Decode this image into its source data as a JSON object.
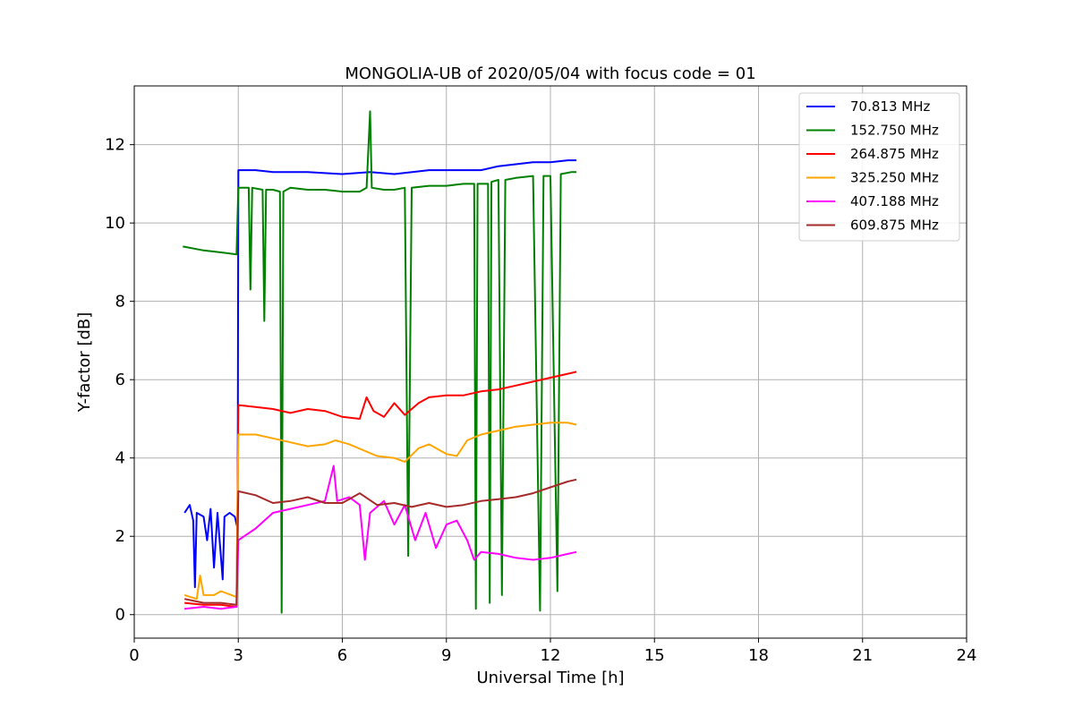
{
  "chart_data": {
    "type": "line",
    "title": "MONGOLIA-UB of 2020/05/04 with focus code = 01",
    "xlabel": "Universal Time [h]",
    "ylabel": "Y-factor [dB]",
    "xlim": [
      0,
      24
    ],
    "ylim": [
      -0.6,
      13.5
    ],
    "xticks": [
      0,
      3,
      6,
      9,
      12,
      15,
      18,
      21,
      24
    ],
    "yticks": [
      0,
      2,
      4,
      6,
      8,
      10,
      12
    ],
    "grid": true,
    "legend_position": "top-right",
    "series": [
      {
        "name": " 70.813 MHz",
        "color": "#0000ff",
        "points": [
          [
            1.45,
            2.6
          ],
          [
            1.6,
            2.8
          ],
          [
            1.7,
            2.4
          ],
          [
            1.75,
            0.7
          ],
          [
            1.8,
            2.6
          ],
          [
            2.0,
            2.5
          ],
          [
            2.1,
            1.9
          ],
          [
            2.2,
            2.7
          ],
          [
            2.3,
            1.2
          ],
          [
            2.4,
            2.6
          ],
          [
            2.55,
            0.9
          ],
          [
            2.6,
            2.5
          ],
          [
            2.75,
            2.6
          ],
          [
            2.9,
            2.5
          ],
          [
            2.98,
            2.2
          ],
          [
            3.0,
            11.35
          ],
          [
            3.5,
            11.35
          ],
          [
            4.0,
            11.3
          ],
          [
            5.0,
            11.3
          ],
          [
            6.0,
            11.25
          ],
          [
            6.8,
            11.3
          ],
          [
            7.5,
            11.25
          ],
          [
            8.5,
            11.35
          ],
          [
            9.0,
            11.35
          ],
          [
            10.0,
            11.35
          ],
          [
            10.5,
            11.45
          ],
          [
            11.0,
            11.5
          ],
          [
            11.5,
            11.55
          ],
          [
            12.0,
            11.55
          ],
          [
            12.5,
            11.6
          ],
          [
            12.75,
            11.6
          ]
        ]
      },
      {
        "name": "152.750 MHz",
        "color": "#008000",
        "points": [
          [
            1.4,
            9.4
          ],
          [
            2.0,
            9.3
          ],
          [
            2.5,
            9.25
          ],
          [
            2.95,
            9.2
          ],
          [
            3.0,
            10.9
          ],
          [
            3.3,
            10.9
          ],
          [
            3.35,
            8.3
          ],
          [
            3.4,
            10.9
          ],
          [
            3.7,
            10.85
          ],
          [
            3.75,
            7.5
          ],
          [
            3.8,
            10.85
          ],
          [
            4.0,
            10.85
          ],
          [
            4.2,
            10.8
          ],
          [
            4.25,
            0.05
          ],
          [
            4.3,
            10.8
          ],
          [
            4.5,
            10.9
          ],
          [
            5.0,
            10.85
          ],
          [
            5.5,
            10.85
          ],
          [
            6.0,
            10.8
          ],
          [
            6.5,
            10.8
          ],
          [
            6.7,
            10.9
          ],
          [
            6.8,
            12.85
          ],
          [
            6.85,
            10.9
          ],
          [
            7.2,
            10.85
          ],
          [
            7.5,
            10.85
          ],
          [
            7.8,
            10.9
          ],
          [
            7.9,
            1.5
          ],
          [
            8.0,
            10.9
          ],
          [
            8.5,
            10.95
          ],
          [
            9.0,
            10.95
          ],
          [
            9.5,
            11.0
          ],
          [
            9.8,
            11.0
          ],
          [
            9.85,
            0.15
          ],
          [
            9.9,
            11.0
          ],
          [
            10.2,
            11.0
          ],
          [
            10.25,
            0.3
          ],
          [
            10.3,
            11.05
          ],
          [
            10.5,
            11.1
          ],
          [
            10.6,
            0.5
          ],
          [
            10.7,
            11.1
          ],
          [
            11.0,
            11.15
          ],
          [
            11.5,
            11.2
          ],
          [
            11.7,
            0.1
          ],
          [
            11.8,
            11.2
          ],
          [
            12.0,
            11.2
          ],
          [
            12.2,
            0.6
          ],
          [
            12.3,
            11.25
          ],
          [
            12.6,
            11.3
          ],
          [
            12.75,
            11.3
          ]
        ]
      },
      {
        "name": "264.875 MHz",
        "color": "#ff0000",
        "points": [
          [
            1.45,
            0.3
          ],
          [
            2.0,
            0.25
          ],
          [
            2.5,
            0.25
          ],
          [
            2.95,
            0.2
          ],
          [
            3.0,
            5.35
          ],
          [
            3.5,
            5.3
          ],
          [
            4.0,
            5.25
          ],
          [
            4.5,
            5.15
          ],
          [
            5.0,
            5.25
          ],
          [
            5.5,
            5.2
          ],
          [
            6.0,
            5.05
          ],
          [
            6.5,
            5.0
          ],
          [
            6.7,
            5.55
          ],
          [
            6.9,
            5.2
          ],
          [
            7.2,
            5.05
          ],
          [
            7.5,
            5.4
          ],
          [
            7.8,
            5.1
          ],
          [
            8.2,
            5.4
          ],
          [
            8.5,
            5.55
          ],
          [
            9.0,
            5.6
          ],
          [
            9.5,
            5.6
          ],
          [
            10.0,
            5.7
          ],
          [
            10.5,
            5.75
          ],
          [
            11.0,
            5.85
          ],
          [
            11.5,
            5.95
          ],
          [
            12.0,
            6.05
          ],
          [
            12.5,
            6.15
          ],
          [
            12.75,
            6.2
          ]
        ]
      },
      {
        "name": "325.250 MHz",
        "color": "#ffa500",
        "points": [
          [
            1.45,
            0.5
          ],
          [
            1.8,
            0.4
          ],
          [
            1.9,
            1.0
          ],
          [
            2.0,
            0.5
          ],
          [
            2.3,
            0.5
          ],
          [
            2.5,
            0.6
          ],
          [
            2.95,
            0.45
          ],
          [
            3.0,
            4.6
          ],
          [
            3.5,
            4.6
          ],
          [
            4.0,
            4.5
          ],
          [
            4.5,
            4.4
          ],
          [
            5.0,
            4.3
          ],
          [
            5.5,
            4.35
          ],
          [
            5.8,
            4.45
          ],
          [
            6.2,
            4.35
          ],
          [
            6.6,
            4.2
          ],
          [
            7.0,
            4.05
          ],
          [
            7.5,
            4.0
          ],
          [
            7.8,
            3.9
          ],
          [
            8.2,
            4.25
          ],
          [
            8.5,
            4.35
          ],
          [
            9.0,
            4.1
          ],
          [
            9.3,
            4.05
          ],
          [
            9.6,
            4.45
          ],
          [
            10.0,
            4.6
          ],
          [
            10.5,
            4.7
          ],
          [
            11.0,
            4.8
          ],
          [
            11.5,
            4.85
          ],
          [
            12.0,
            4.9
          ],
          [
            12.5,
            4.9
          ],
          [
            12.75,
            4.85
          ]
        ]
      },
      {
        "name": "407.188 MHz",
        "color": "#ff00ff",
        "points": [
          [
            1.45,
            0.15
          ],
          [
            2.0,
            0.2
          ],
          [
            2.5,
            0.15
          ],
          [
            2.95,
            0.2
          ],
          [
            3.0,
            1.9
          ],
          [
            3.5,
            2.2
          ],
          [
            4.0,
            2.6
          ],
          [
            4.5,
            2.7
          ],
          [
            5.0,
            2.8
          ],
          [
            5.5,
            2.9
          ],
          [
            5.75,
            3.8
          ],
          [
            5.85,
            2.9
          ],
          [
            6.2,
            3.0
          ],
          [
            6.5,
            2.8
          ],
          [
            6.65,
            1.4
          ],
          [
            6.8,
            2.6
          ],
          [
            7.2,
            2.9
          ],
          [
            7.5,
            2.3
          ],
          [
            7.8,
            2.8
          ],
          [
            8.1,
            1.9
          ],
          [
            8.4,
            2.6
          ],
          [
            8.7,
            1.7
          ],
          [
            9.0,
            2.3
          ],
          [
            9.3,
            2.4
          ],
          [
            9.6,
            1.9
          ],
          [
            9.8,
            1.4
          ],
          [
            10.0,
            1.6
          ],
          [
            10.5,
            1.55
          ],
          [
            11.0,
            1.45
          ],
          [
            11.5,
            1.4
          ],
          [
            12.0,
            1.45
          ],
          [
            12.5,
            1.55
          ],
          [
            12.75,
            1.6
          ]
        ]
      },
      {
        "name": "609.875 MHz",
        "color": "#a52a2a",
        "points": [
          [
            1.45,
            0.4
          ],
          [
            2.0,
            0.3
          ],
          [
            2.5,
            0.3
          ],
          [
            2.95,
            0.25
          ],
          [
            3.0,
            3.15
          ],
          [
            3.5,
            3.05
          ],
          [
            4.0,
            2.85
          ],
          [
            4.5,
            2.9
          ],
          [
            5.0,
            3.0
          ],
          [
            5.5,
            2.85
          ],
          [
            6.0,
            2.85
          ],
          [
            6.5,
            3.1
          ],
          [
            7.0,
            2.8
          ],
          [
            7.5,
            2.85
          ],
          [
            8.0,
            2.75
          ],
          [
            8.5,
            2.85
          ],
          [
            9.0,
            2.75
          ],
          [
            9.5,
            2.8
          ],
          [
            10.0,
            2.9
          ],
          [
            10.5,
            2.95
          ],
          [
            11.0,
            3.0
          ],
          [
            11.5,
            3.1
          ],
          [
            12.0,
            3.25
          ],
          [
            12.5,
            3.4
          ],
          [
            12.75,
            3.45
          ]
        ]
      }
    ]
  }
}
